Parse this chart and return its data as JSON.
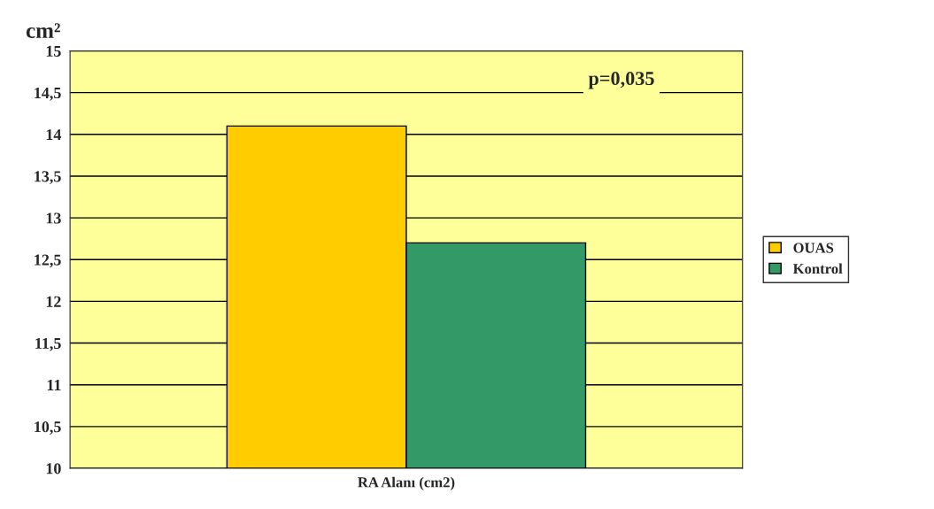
{
  "chart_data": {
    "type": "bar",
    "ylabel": "cm²",
    "categories": [
      "RA Alanı (cm2)"
    ],
    "series": [
      {
        "name": "OUAS",
        "color": "#ffcc00",
        "values": [
          14.1
        ]
      },
      {
        "name": "Kontrol",
        "color": "#339966",
        "values": [
          12.7
        ]
      }
    ],
    "ylim": [
      10,
      15
    ],
    "yticks": [
      10,
      {
        "value": 10.5,
        "label": "10,5"
      },
      11,
      {
        "value": 11.5,
        "label": "11,5"
      },
      12,
      {
        "value": 12.5,
        "label": "12,5"
      },
      13,
      {
        "value": 13.5,
        "label": "13,5"
      },
      14,
      {
        "value": 14.5,
        "label": "14,5"
      },
      15
    ],
    "grid": "y",
    "legend": "right",
    "annotations": [
      "p=0,035"
    ]
  }
}
